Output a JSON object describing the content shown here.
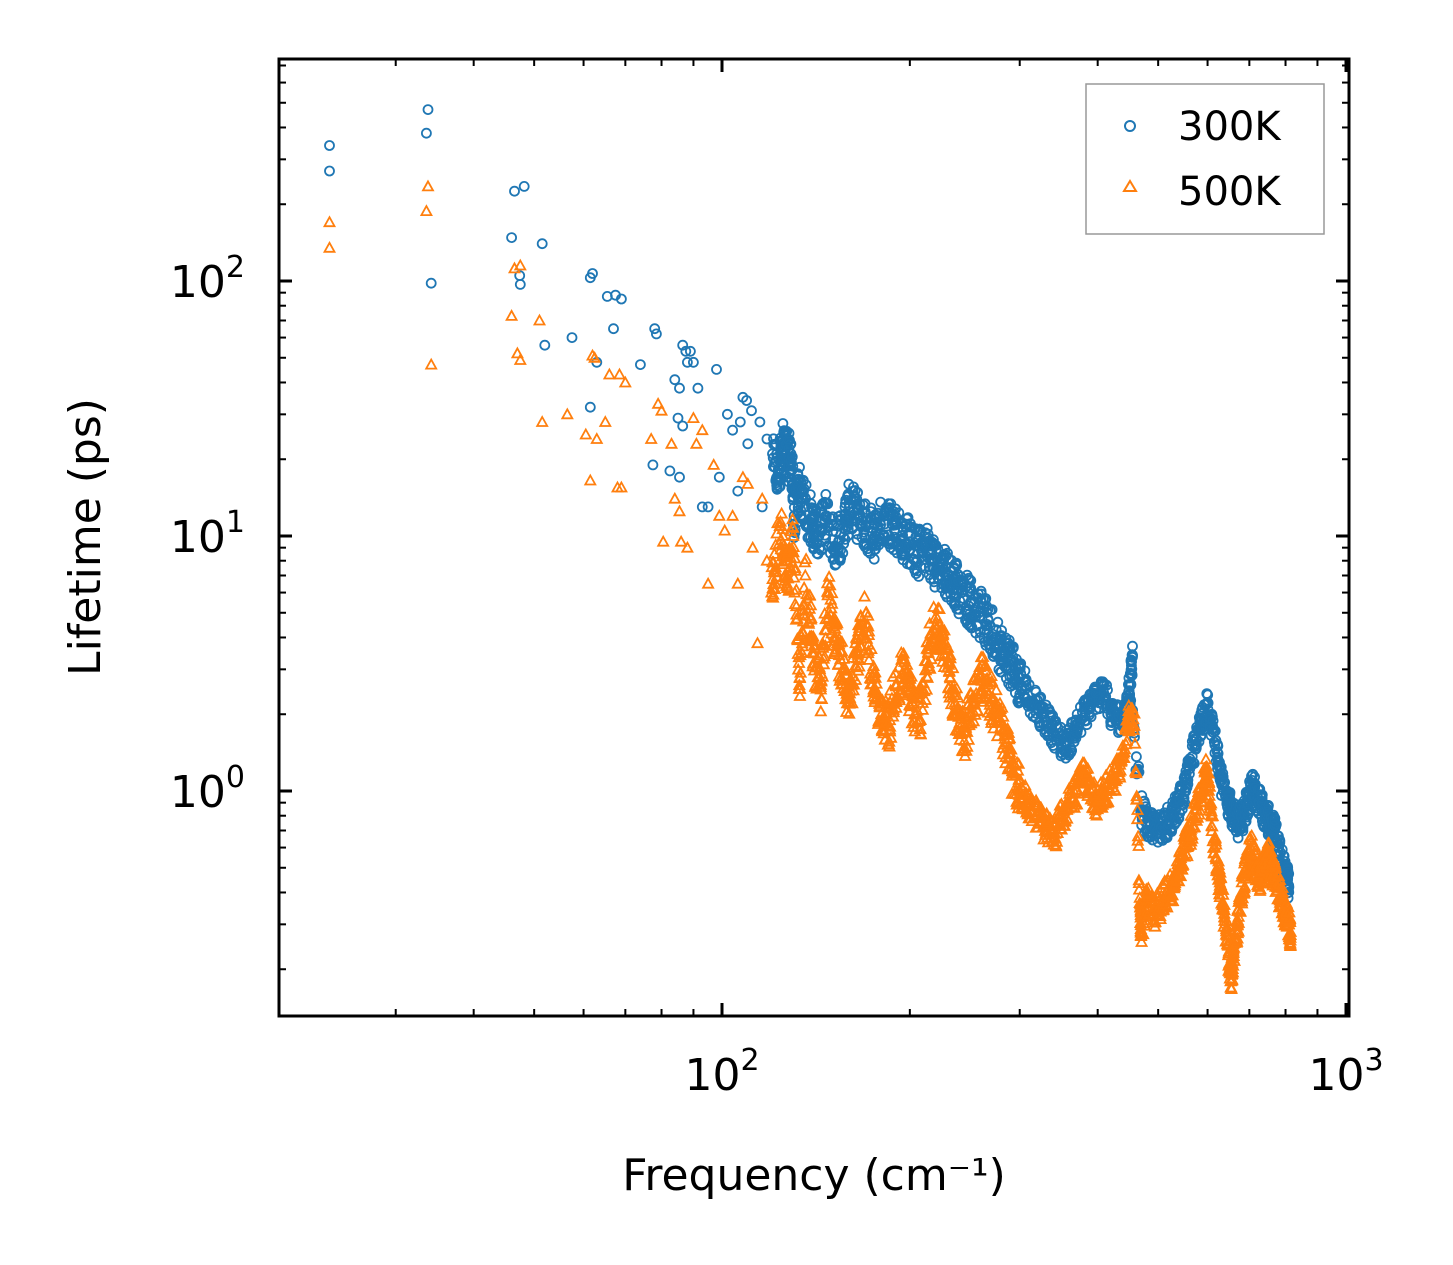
{
  "chart_data": {
    "type": "scatter",
    "title": "",
    "xlabel": "Frequency (cm⁻¹)",
    "ylabel": "Lifetime (ps)",
    "xscale": "log",
    "yscale": "log",
    "xlim": [
      21,
      1000
    ],
    "ylim": [
      0.15,
      750
    ],
    "xtick_labels": [
      {
        "value": 100,
        "base": "10",
        "exp": "2"
      },
      {
        "value": 1000,
        "base": "10",
        "exp": "3"
      }
    ],
    "ytick_labels": [
      {
        "value": 1,
        "base": "10",
        "exp": "0"
      },
      {
        "value": 10,
        "base": "10",
        "exp": "1"
      },
      {
        "value": 100,
        "base": "10",
        "exp": "2"
      }
    ],
    "legend": {
      "position": "top-right"
    },
    "series": [
      {
        "name": "300K",
        "marker": "circle",
        "color": "#1f77b4",
        "points": [
          [
            23.5,
            340
          ],
          [
            23.5,
            270
          ],
          [
            33.8,
            470
          ],
          [
            33.6,
            380
          ],
          [
            34.2,
            98
          ],
          [
            46.5,
            225
          ],
          [
            48.2,
            235
          ],
          [
            46.0,
            148
          ],
          [
            47.4,
            105
          ],
          [
            47.5,
            97
          ],
          [
            51.5,
            140
          ],
          [
            52.0,
            56
          ],
          [
            57.5,
            60
          ],
          [
            61.5,
            103
          ],
          [
            62.0,
            107
          ],
          [
            65.5,
            87
          ],
          [
            67.5,
            88
          ],
          [
            69.0,
            85
          ],
          [
            67.0,
            65
          ],
          [
            61.5,
            32
          ],
          [
            63.0,
            48
          ],
          [
            74.0,
            47
          ],
          [
            78.0,
            65
          ],
          [
            78.5,
            62
          ],
          [
            77.5,
            19
          ],
          [
            82.5,
            18
          ],
          [
            84.0,
            41
          ],
          [
            85.5,
            38
          ],
          [
            85.0,
            29
          ],
          [
            86.5,
            56
          ],
          [
            87.5,
            53
          ],
          [
            89.0,
            53
          ],
          [
            88.0,
            48
          ],
          [
            90.0,
            48
          ],
          [
            85.5,
            17
          ],
          [
            86.5,
            27
          ],
          [
            91.5,
            38
          ],
          [
            93.0,
            13
          ],
          [
            95.0,
            13
          ],
          [
            98.0,
            45
          ],
          [
            99.0,
            17
          ],
          [
            102.0,
            30
          ],
          [
            104.0,
            26
          ],
          [
            106.0,
            15
          ],
          [
            107.0,
            28
          ],
          [
            108.0,
            35
          ],
          [
            109.5,
            34
          ],
          [
            110.0,
            23
          ],
          [
            111.5,
            31
          ],
          [
            115.0,
            28
          ],
          [
            116.0,
            13
          ],
          [
            118.0,
            24
          ],
          [
            120.5,
            21
          ],
          [
            123.0,
            17
          ],
          [
            125.0,
            23
          ],
          [
            127.5,
            20
          ],
          [
            129.0,
            21
          ],
          [
            130.5,
            12
          ],
          [
            133.0,
            15
          ],
          [
            136.0,
            13
          ],
          [
            140.0,
            11
          ],
          [
            143.0,
            10
          ],
          [
            147.0,
            12
          ],
          [
            152.0,
            9
          ],
          [
            157.0,
            11
          ],
          [
            160.0,
            13
          ],
          [
            165.0,
            12
          ],
          [
            170.0,
            11
          ],
          [
            176.0,
            10
          ],
          [
            182.0,
            12
          ],
          [
            188.0,
            11
          ],
          [
            194.0,
            10
          ],
          [
            200.0,
            9.5
          ],
          [
            206.0,
            8.5
          ],
          [
            212.0,
            9
          ],
          [
            218.0,
            8
          ],
          [
            224.0,
            7.5
          ],
          [
            230.0,
            7
          ],
          [
            236.0,
            6.5
          ],
          [
            242.0,
            6
          ],
          [
            250.0,
            5.5
          ],
          [
            258.0,
            5
          ],
          [
            266.0,
            4.5
          ],
          [
            274.0,
            4.0
          ],
          [
            282.0,
            3.5
          ],
          [
            290.0,
            3.2
          ],
          [
            298.0,
            2.8
          ],
          [
            306.0,
            2.5
          ],
          [
            316.0,
            2.2
          ],
          [
            326.0,
            2.0
          ],
          [
            336.0,
            1.8
          ],
          [
            346.0,
            1.6
          ],
          [
            356.0,
            1.5
          ],
          [
            366.0,
            1.7
          ],
          [
            376.0,
            1.9
          ],
          [
            386.0,
            2.1
          ],
          [
            396.0,
            2.3
          ],
          [
            408.0,
            2.5
          ],
          [
            420.0,
            2.0
          ],
          [
            432.0,
            1.9
          ],
          [
            444.0,
            2.0
          ],
          [
            455.0,
            3.4
          ],
          [
            450.0,
            2.4
          ],
          [
            470.0,
            0.85
          ],
          [
            480.0,
            0.75
          ],
          [
            492.0,
            0.7
          ],
          [
            504.0,
            0.72
          ],
          [
            516.0,
            0.75
          ],
          [
            528.0,
            0.8
          ],
          [
            540.0,
            0.9
          ],
          [
            552.0,
            1.0
          ],
          [
            564.0,
            1.3
          ],
          [
            576.0,
            1.6
          ],
          [
            588.0,
            1.9
          ],
          [
            600.0,
            2.2
          ],
          [
            612.0,
            1.7
          ],
          [
            624.0,
            1.3
          ],
          [
            636.0,
            1.0
          ],
          [
            648.0,
            0.9
          ],
          [
            660.0,
            0.8
          ],
          [
            672.0,
            0.75
          ],
          [
            684.0,
            0.8
          ],
          [
            696.0,
            0.9
          ],
          [
            708.0,
            1.1
          ],
          [
            720.0,
            0.95
          ],
          [
            732.0,
            0.85
          ],
          [
            744.0,
            0.8
          ],
          [
            756.0,
            0.75
          ],
          [
            768.0,
            0.7
          ],
          [
            780.0,
            0.6
          ],
          [
            792.0,
            0.5
          ],
          [
            805.0,
            0.45
          ],
          [
            810.0,
            0.42
          ]
        ]
      },
      {
        "name": "500K",
        "marker": "triangle",
        "color": "#ff7f0e",
        "points": [
          [
            23.5,
            170
          ],
          [
            23.5,
            135
          ],
          [
            33.8,
            235
          ],
          [
            33.6,
            188
          ],
          [
            34.2,
            47
          ],
          [
            46.0,
            73
          ],
          [
            46.5,
            112
          ],
          [
            47.5,
            115
          ],
          [
            47.0,
            52
          ],
          [
            47.5,
            49
          ],
          [
            51.0,
            70
          ],
          [
            51.5,
            28
          ],
          [
            56.5,
            30
          ],
          [
            60.5,
            25
          ],
          [
            62.0,
            51
          ],
          [
            62.5,
            50
          ],
          [
            63.0,
            24
          ],
          [
            65.0,
            28
          ],
          [
            66.0,
            43
          ],
          [
            68.5,
            43
          ],
          [
            70.0,
            40
          ],
          [
            61.5,
            16.5
          ],
          [
            68.0,
            15.5
          ],
          [
            69.0,
            15.5
          ],
          [
            77.0,
            24
          ],
          [
            79.0,
            33
          ],
          [
            80.0,
            31
          ],
          [
            80.5,
            9.5
          ],
          [
            83.0,
            23
          ],
          [
            84.0,
            14
          ],
          [
            85.5,
            12.5
          ],
          [
            86.0,
            9.5
          ],
          [
            88.0,
            9
          ],
          [
            90.0,
            29
          ],
          [
            91.0,
            23
          ],
          [
            93.0,
            26
          ],
          [
            95.0,
            6.5
          ],
          [
            97.0,
            19
          ],
          [
            99.0,
            12
          ],
          [
            101.0,
            10.5
          ],
          [
            104.0,
            12
          ],
          [
            106.0,
            6.5
          ],
          [
            108.0,
            17
          ],
          [
            110.0,
            16
          ],
          [
            112.0,
            9
          ],
          [
            114.0,
            3.8
          ],
          [
            116.0,
            14
          ],
          [
            118.0,
            8
          ],
          [
            120.0,
            6
          ],
          [
            124.0,
            11
          ],
          [
            127.0,
            6.5
          ],
          [
            130.0,
            10
          ],
          [
            133.0,
            2.6
          ],
          [
            136.0,
            7
          ],
          [
            140.0,
            3.5
          ],
          [
            144.0,
            2.5
          ],
          [
            148.0,
            6
          ],
          [
            152.0,
            4
          ],
          [
            156.0,
            3
          ],
          [
            160.0,
            2.2
          ],
          [
            165.0,
            3.5
          ],
          [
            170.0,
            5
          ],
          [
            175.0,
            2.5
          ],
          [
            180.0,
            2
          ],
          [
            185.0,
            1.8
          ],
          [
            190.0,
            2.6
          ],
          [
            196.0,
            3.0
          ],
          [
            202.0,
            2.2
          ],
          [
            208.0,
            1.9
          ],
          [
            214.0,
            3.5
          ],
          [
            220.0,
            4.5
          ],
          [
            226.0,
            3.8
          ],
          [
            232.0,
            2.8
          ],
          [
            238.0,
            2.0
          ],
          [
            245.0,
            1.7
          ],
          [
            252.0,
            2.2
          ],
          [
            260.0,
            2.8
          ],
          [
            268.0,
            2.4
          ],
          [
            276.0,
            2.0
          ],
          [
            284.0,
            1.6
          ],
          [
            292.0,
            1.2
          ],
          [
            300.0,
            1.0
          ],
          [
            310.0,
            0.9
          ],
          [
            320.0,
            0.8
          ],
          [
            330.0,
            0.72
          ],
          [
            340.0,
            0.65
          ],
          [
            350.0,
            0.8
          ],
          [
            360.0,
            0.9
          ],
          [
            370.0,
            1.0
          ],
          [
            380.0,
            1.2
          ],
          [
            390.0,
            1.0
          ],
          [
            400.0,
            0.9
          ],
          [
            412.0,
            1.0
          ],
          [
            424.0,
            1.1
          ],
          [
            436.0,
            1.3
          ],
          [
            448.0,
            1.9
          ],
          [
            458.0,
            1.8
          ],
          [
            468.0,
            0.35
          ],
          [
            470.0,
            0.28
          ],
          [
            480.0,
            0.38
          ],
          [
            492.0,
            0.33
          ],
          [
            504.0,
            0.36
          ],
          [
            516.0,
            0.4
          ],
          [
            528.0,
            0.42
          ],
          [
            540.0,
            0.5
          ],
          [
            552.0,
            0.6
          ],
          [
            564.0,
            0.7
          ],
          [
            576.0,
            0.85
          ],
          [
            588.0,
            1.0
          ],
          [
            598.0,
            1.2
          ],
          [
            606.0,
            0.9
          ],
          [
            616.0,
            0.6
          ],
          [
            626.0,
            0.45
          ],
          [
            636.0,
            0.35
          ],
          [
            646.0,
            0.25
          ],
          [
            654.0,
            0.18
          ],
          [
            660.0,
            0.22
          ],
          [
            670.0,
            0.3
          ],
          [
            680.0,
            0.4
          ],
          [
            692.0,
            0.5
          ],
          [
            704.0,
            0.6
          ],
          [
            716.0,
            0.52
          ],
          [
            728.0,
            0.45
          ],
          [
            740.0,
            0.5
          ],
          [
            752.0,
            0.55
          ],
          [
            764.0,
            0.48
          ],
          [
            776.0,
            0.42
          ],
          [
            788.0,
            0.38
          ],
          [
            800.0,
            0.33
          ],
          [
            810.0,
            0.3
          ],
          [
            815.0,
            0.28
          ]
        ]
      }
    ]
  }
}
